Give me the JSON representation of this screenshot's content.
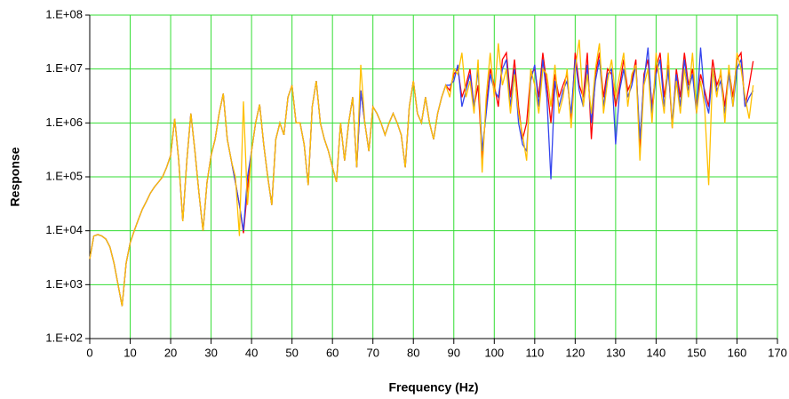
{
  "chart_data": {
    "type": "line",
    "x_label": "Frequency (Hz)",
    "y_label": "Response",
    "log_y": true,
    "grid": true,
    "grid_color": "#33dd33",
    "xlim": [
      0,
      170
    ],
    "xticks": [
      0,
      10,
      20,
      30,
      40,
      50,
      60,
      70,
      80,
      90,
      100,
      110,
      120,
      130,
      140,
      150,
      160,
      170
    ],
    "ylim": [
      100,
      100000000
    ],
    "yticks": [
      {
        "value": 100,
        "label": "1.E+02"
      },
      {
        "value": 1000,
        "label": "1.E+03"
      },
      {
        "value": 10000,
        "label": "1.E+04"
      },
      {
        "value": 100000,
        "label": "1.E+05"
      },
      {
        "value": 1000000,
        "label": "1.E+06"
      },
      {
        "value": 10000000,
        "label": "1.E+07"
      },
      {
        "value": 100000000,
        "label": "1.E+08"
      }
    ],
    "x": [
      0,
      1,
      2,
      3,
      4,
      5,
      6,
      7,
      8,
      9,
      10,
      11,
      12,
      13,
      14,
      15,
      16,
      17,
      18,
      19,
      20,
      21,
      22,
      23,
      24,
      25,
      26,
      27,
      28,
      29,
      30,
      31,
      32,
      33,
      34,
      35,
      36,
      37,
      38,
      39,
      40,
      41,
      42,
      43,
      44,
      45,
      46,
      47,
      48,
      49,
      50,
      51,
      52,
      53,
      54,
      55,
      56,
      57,
      58,
      59,
      60,
      61,
      62,
      63,
      64,
      65,
      66,
      67,
      68,
      69,
      70,
      71,
      72,
      73,
      74,
      75,
      76,
      77,
      78,
      79,
      80,
      81,
      82,
      83,
      84,
      85,
      86,
      87,
      88,
      89,
      90,
      91,
      92,
      93,
      94,
      95,
      96,
      97,
      98,
      99,
      100,
      101,
      102,
      103,
      104,
      105,
      106,
      107,
      108,
      109,
      110,
      111,
      112,
      113,
      114,
      115,
      116,
      117,
      118,
      119,
      120,
      121,
      122,
      123,
      124,
      125,
      126,
      127,
      128,
      129,
      130,
      131,
      132,
      133,
      134,
      135,
      136,
      137,
      138,
      139,
      140,
      141,
      142,
      143,
      144,
      145,
      146,
      147,
      148,
      149,
      150,
      151,
      152,
      153,
      154,
      155,
      156,
      157,
      158,
      159,
      160,
      161,
      162,
      163,
      164
    ],
    "series": [
      {
        "color": "#ff0000",
        "values": [
          3000.0,
          8000.0,
          8500.0,
          8000.0,
          7000.0,
          5000.0,
          2500.0,
          1000.0,
          400.0,
          2500.0,
          6000.0,
          10000.0,
          16000.0,
          25000.0,
          35000.0,
          50000.0,
          65000.0,
          80000.0,
          100000.0,
          150000.0,
          250000.0,
          1200000.0,
          200000.0,
          15000.0,
          200000.0,
          1500000.0,
          300000.0,
          50000.0,
          10000.0,
          80000.0,
          250000.0,
          500000.0,
          1500000.0,
          3500000.0,
          500000.0,
          200000.0,
          80000.0,
          30000.0,
          9000.0,
          60000.0,
          300000.0,
          1000000.0,
          2200000.0,
          400000.0,
          100000.0,
          30000.0,
          500000.0,
          1000000.0,
          600000.0,
          3000000.0,
          5000000.0,
          1000000.0,
          1000000.0,
          400000.0,
          70000.0,
          2000000.0,
          6000000.0,
          1000000.0,
          500000.0,
          300000.0,
          150000.0,
          80000.0,
          1000000.0,
          200000.0,
          1000000.0,
          3000000.0,
          150000.0,
          4000000.0,
          1000000.0,
          300000.0,
          2000000.0,
          1500000.0,
          1000000.0,
          600000.0,
          1000000.0,
          1500000.0,
          1000000.0,
          600000.0,
          150000.0,
          2000000.0,
          6000000.0,
          1500000.0,
          1000000.0,
          3000000.0,
          1000000.0,
          500000.0,
          1500000.0,
          3000000.0,
          5000000.0,
          4000000.0,
          8000000.0,
          10000000.0,
          3000000.0,
          5000000.0,
          10000000.0,
          2000000.0,
          5000000.0,
          200000.0,
          2000000.0,
          10000000.0,
          5000000.0,
          2000000.0,
          15000000.0,
          20000000.0,
          3000000.0,
          15000000.0,
          2000000.0,
          500000.0,
          1000000.0,
          8000000.0,
          10000000.0,
          3000000.0,
          20000000.0,
          5000000.0,
          1000000.0,
          8000000.0,
          3000000.0,
          5000000.0,
          8000000.0,
          1000000.0,
          20000000.0,
          5000000.0,
          3000000.0,
          20000000.0,
          500000.0,
          8000000.0,
          20000000.0,
          3000000.0,
          10000000.0,
          8000000.0,
          2000000.0,
          5000000.0,
          15000000.0,
          4000000.0,
          6000000.0,
          15000000.0,
          300000.0,
          8000000.0,
          15000000.0,
          2000000.0,
          10000000.0,
          20000000.0,
          3000000.0,
          12000000.0,
          800000.0,
          10000000.0,
          3000000.0,
          20000000.0,
          5000000.0,
          10000000.0,
          2000000.0,
          8000000.0,
          4000000.0,
          2000000.0,
          15000000.0,
          5000000.0,
          8000000.0,
          2000000.0,
          10000000.0,
          3000000.0,
          15000000.0,
          20000000.0,
          2000000.0,
          5000000.0,
          14000000.0
        ]
      },
      {
        "color": "#3344ee",
        "values": [
          3000.0,
          8000.0,
          8500.0,
          8000.0,
          7000.0,
          5000.0,
          2500.0,
          1000.0,
          400.0,
          2500.0,
          6000.0,
          10000.0,
          16000.0,
          25000.0,
          35000.0,
          50000.0,
          65000.0,
          80000.0,
          100000.0,
          150000.0,
          250000.0,
          1200000.0,
          200000.0,
          15000.0,
          200000.0,
          1500000.0,
          300000.0,
          50000.0,
          10000.0,
          80000.0,
          250000.0,
          500000.0,
          1500000.0,
          3500000.0,
          500000.0,
          200000.0,
          80000.0,
          30000.0,
          10000.0,
          100000.0,
          300000.0,
          1000000.0,
          2200000.0,
          400000.0,
          100000.0,
          30000.0,
          500000.0,
          1000000.0,
          600000.0,
          3000000.0,
          5000000.0,
          1000000.0,
          1000000.0,
          400000.0,
          70000.0,
          2000000.0,
          6000000.0,
          1000000.0,
          500000.0,
          300000.0,
          150000.0,
          80000.0,
          1000000.0,
          200000.0,
          1000000.0,
          3000000.0,
          150000.0,
          4000000.0,
          1000000.0,
          300000.0,
          2000000.0,
          1500000.0,
          1000000.0,
          600000.0,
          1000000.0,
          1500000.0,
          1000000.0,
          600000.0,
          150000.0,
          2000000.0,
          6000000.0,
          1500000.0,
          1000000.0,
          3000000.0,
          1000000.0,
          500000.0,
          1500000.0,
          3000000.0,
          5000000.0,
          5000000.0,
          6000000.0,
          12000000.0,
          2000000.0,
          4000000.0,
          8000000.0,
          2000000.0,
          10000000.0,
          300000.0,
          1500000.0,
          8000000.0,
          4000000.0,
          3000000.0,
          10000000.0,
          15000000.0,
          2000000.0,
          10000000.0,
          1000000.0,
          400000.0,
          300000.0,
          6000000.0,
          12000000.0,
          2000000.0,
          15000000.0,
          3000000.0,
          90000.0,
          6000000.0,
          2000000.0,
          4000000.0,
          6000000.0,
          1500000.0,
          15000000.0,
          4000000.0,
          2000000.0,
          12000000.0,
          1000000.0,
          6000000.0,
          15000000.0,
          2000000.0,
          8000000.0,
          10000000.0,
          400000.0,
          4000000.0,
          10000000.0,
          3000000.0,
          5000000.0,
          12000000.0,
          500000.0,
          6000000.0,
          25000000.0,
          1500000.0,
          8000000.0,
          15000000.0,
          2000000.0,
          10000000.0,
          1000000.0,
          8000000.0,
          2000000.0,
          15000000.0,
          4000000.0,
          8000000.0,
          1500000.0,
          25000000.0,
          3000000.0,
          1500000.0,
          10000000.0,
          4000000.0,
          6000000.0,
          1500000.0,
          8000000.0,
          2000000.0,
          10000000.0,
          15000000.0,
          2000000.0,
          3000000.0,
          4000000.0
        ]
      },
      {
        "color": "#ffc000",
        "values": [
          3000.0,
          8000.0,
          8500.0,
          8000.0,
          7000.0,
          5000.0,
          2500.0,
          1000.0,
          400.0,
          2500.0,
          6000.0,
          10000.0,
          16000.0,
          25000.0,
          35000.0,
          50000.0,
          65000.0,
          80000.0,
          100000.0,
          150000.0,
          250000.0,
          1200000.0,
          200000.0,
          15000.0,
          200000.0,
          1500000.0,
          300000.0,
          50000.0,
          10000.0,
          80000.0,
          250000.0,
          500000.0,
          1500000.0,
          3500000.0,
          500000.0,
          200000.0,
          100000.0,
          8000.0,
          2500000.0,
          30000.0,
          300000.0,
          1000000.0,
          2200000.0,
          400000.0,
          100000.0,
          30000.0,
          500000.0,
          1000000.0,
          600000.0,
          3000000.0,
          5000000.0,
          1000000.0,
          1000000.0,
          400000.0,
          70000.0,
          2000000.0,
          6000000.0,
          1000000.0,
          500000.0,
          300000.0,
          150000.0,
          80000.0,
          1000000.0,
          200000.0,
          1000000.0,
          3000000.0,
          150000.0,
          12000000.0,
          1000000.0,
          300000.0,
          2000000.0,
          1500000.0,
          1000000.0,
          600000.0,
          1000000.0,
          1500000.0,
          1000000.0,
          600000.0,
          150000.0,
          2000000.0,
          6000000.0,
          1500000.0,
          1000000.0,
          3000000.0,
          1000000.0,
          500000.0,
          1500000.0,
          3000000.0,
          5000000.0,
          3000000.0,
          10000000.0,
          8000000.0,
          20000000.0,
          3000000.0,
          6000000.0,
          1500000.0,
          15000000.0,
          120000.0,
          3000000.0,
          20000000.0,
          3000000.0,
          30000000.0,
          5000000.0,
          10000000.0,
          1500000.0,
          8000000.0,
          1500000.0,
          600000.0,
          200000.0,
          10000000.0,
          5000000.0,
          1500000.0,
          10000000.0,
          8000000.0,
          2000000.0,
          12000000.0,
          1500000.0,
          3000000.0,
          10000000.0,
          800000.0,
          10000000.0,
          35000000.0,
          2000000.0,
          8000000.0,
          1500000.0,
          10000000.0,
          30000000.0,
          1500000.0,
          6000000.0,
          15000000.0,
          3000000.0,
          8000000.0,
          20000000.0,
          2000000.0,
          8000000.0,
          12000000.0,
          200000.0,
          5000000.0,
          10000000.0,
          1000000.0,
          20000000.0,
          5000000.0,
          1500000.0,
          20000000.0,
          800000.0,
          6000000.0,
          1500000.0,
          10000000.0,
          3000000.0,
          20000000.0,
          1500000.0,
          6000000.0,
          2000000.0,
          70000.0,
          10000000.0,
          3000000.0,
          10000000.0,
          1000000.0,
          12000000.0,
          2000000.0,
          20000000.0,
          10000000.0,
          3000000.0,
          1200000.0,
          5000000.0
        ]
      }
    ]
  }
}
